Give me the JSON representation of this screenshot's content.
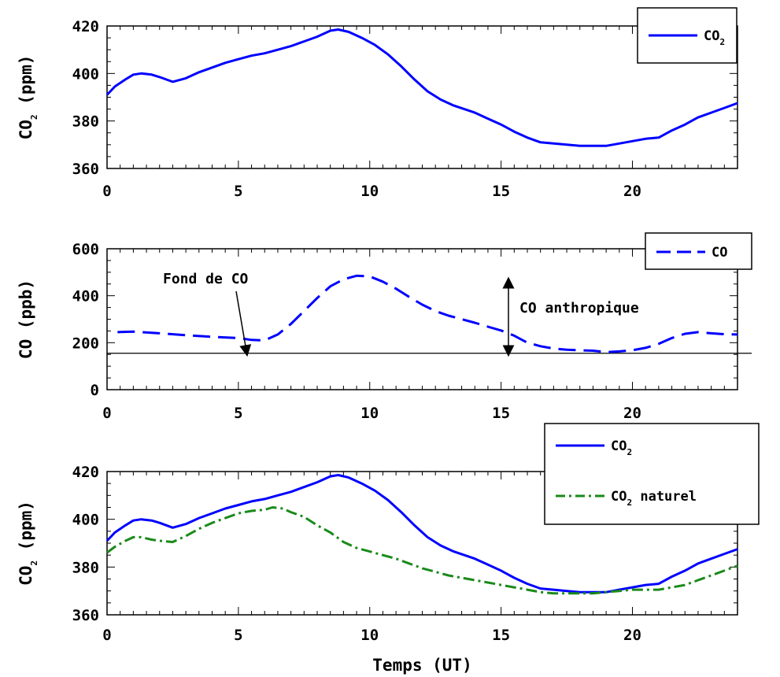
{
  "chart_data": [
    {
      "type": "line",
      "xlabel": "",
      "ylabel": "CO",
      "ylabel_sub": "2",
      "ylabel_unit": "(ppm)",
      "xlim": [
        0,
        24
      ],
      "ylim": [
        360,
        420
      ],
      "xticks": [
        "0",
        "5",
        "10",
        "15",
        "20"
      ],
      "yticks": [
        "360",
        "380",
        "400",
        "420"
      ],
      "legend_placement": "top-right",
      "series": [
        {
          "name": "CO",
          "name_sub": "2",
          "color": "#0000ff",
          "style": "solid",
          "x": [
            0,
            0.3,
            0.7,
            1.0,
            1.3,
            1.7,
            2.0,
            2.5,
            3.0,
            3.5,
            4.0,
            4.5,
            5.0,
            5.5,
            6.0,
            6.5,
            7.0,
            7.5,
            8.0,
            8.5,
            8.8,
            9.2,
            9.7,
            10.2,
            10.7,
            11.2,
            11.7,
            12.2,
            12.7,
            13.2,
            14.0,
            14.5,
            15.0,
            15.5,
            16.0,
            16.5,
            17.0,
            17.5,
            18.0,
            18.5,
            19.0,
            19.5,
            20.0,
            20.5,
            21.0,
            21.5,
            22.0,
            22.5,
            23.0,
            23.5,
            24.0
          ],
          "y": [
            391.0,
            394.5,
            397.5,
            399.5,
            400.0,
            399.5,
            398.5,
            396.5,
            398.0,
            400.5,
            402.5,
            404.5,
            406.0,
            407.5,
            408.5,
            410.0,
            411.5,
            413.5,
            415.5,
            418.0,
            418.5,
            417.5,
            415.0,
            412.0,
            408.0,
            403.0,
            397.5,
            392.5,
            389.0,
            386.5,
            383.5,
            381.0,
            378.5,
            375.5,
            373.0,
            371.0,
            370.5,
            370.0,
            369.5,
            369.5,
            369.5,
            370.5,
            371.5,
            372.5,
            373.0,
            376.0,
            378.5,
            381.5,
            383.5,
            385.5,
            387.5
          ]
        }
      ]
    },
    {
      "type": "line",
      "xlabel": "",
      "ylabel": "CO",
      "ylabel_unit": "(ppb)",
      "xlim": [
        0,
        24
      ],
      "ylim": [
        0,
        600
      ],
      "xticks": [
        "0",
        "5",
        "10",
        "15",
        "20"
      ],
      "yticks": [
        "0",
        "200",
        "400",
        "600"
      ],
      "legend_placement": "top-right",
      "baseline": 155,
      "annotations": [
        {
          "text": "Fond de CO"
        },
        {
          "text": "CO anthropique"
        }
      ],
      "series": [
        {
          "name": "CO",
          "color": "#0000ff",
          "style": "dashed",
          "x": [
            0.4,
            1.0,
            2.0,
            3.0,
            4.0,
            5.0,
            5.5,
            6.0,
            6.5,
            7.0,
            7.5,
            8.0,
            8.5,
            9.0,
            9.5,
            10.0,
            10.5,
            11.0,
            11.5,
            12.0,
            12.5,
            13.0,
            13.5,
            14.0,
            14.5,
            15.0,
            15.5,
            16.0,
            16.5,
            17.0,
            17.5,
            18.0,
            18.5,
            19.0,
            19.5,
            20.0,
            20.5,
            21.0,
            21.5,
            22.0,
            22.5,
            23.0,
            23.5,
            24.0
          ],
          "y": [
            245,
            247,
            240,
            232,
            225,
            220,
            212,
            210,
            235,
            280,
            335,
            390,
            440,
            470,
            485,
            482,
            460,
            430,
            395,
            362,
            335,
            315,
            300,
            285,
            268,
            252,
            230,
            200,
            185,
            175,
            170,
            168,
            166,
            160,
            163,
            168,
            178,
            195,
            220,
            238,
            245,
            240,
            236,
            235
          ]
        }
      ]
    },
    {
      "type": "line",
      "xlabel": "Temps (UT)",
      "ylabel": "CO",
      "ylabel_sub": "2",
      "ylabel_unit": "(ppm)",
      "xlim": [
        0,
        24
      ],
      "ylim": [
        360,
        420
      ],
      "xticks": [
        "0",
        "5",
        "10",
        "15",
        "20"
      ],
      "yticks": [
        "360",
        "380",
        "400",
        "420"
      ],
      "legend_placement": "top-right",
      "series": [
        {
          "name": "CO",
          "name_sub": "2",
          "color": "#0000ff",
          "style": "solid",
          "x": [
            0,
            0.3,
            0.7,
            1.0,
            1.3,
            1.7,
            2.0,
            2.5,
            3.0,
            3.5,
            4.0,
            4.5,
            5.0,
            5.5,
            6.0,
            6.5,
            7.0,
            7.5,
            8.0,
            8.5,
            8.8,
            9.2,
            9.7,
            10.2,
            10.7,
            11.2,
            11.7,
            12.2,
            12.7,
            13.2,
            14.0,
            14.5,
            15.0,
            15.5,
            16.0,
            16.5,
            17.0,
            17.5,
            18.0,
            18.5,
            19.0,
            19.5,
            20.0,
            20.5,
            21.0,
            21.5,
            22.0,
            22.5,
            23.0,
            23.5,
            24.0
          ],
          "y": [
            391.0,
            394.5,
            397.5,
            399.5,
            400.0,
            399.5,
            398.5,
            396.5,
            398.0,
            400.5,
            402.5,
            404.5,
            406.0,
            407.5,
            408.5,
            410.0,
            411.5,
            413.5,
            415.5,
            418.0,
            418.5,
            417.5,
            415.0,
            412.0,
            408.0,
            403.0,
            397.5,
            392.5,
            389.0,
            386.5,
            383.5,
            381.0,
            378.5,
            375.5,
            373.0,
            371.0,
            370.5,
            370.0,
            369.5,
            369.5,
            369.5,
            370.5,
            371.5,
            372.5,
            373.0,
            376.0,
            378.5,
            381.5,
            383.5,
            385.5,
            387.5
          ]
        },
        {
          "name": "CO",
          "name_sub": "2",
          "name_suffix": "naturel",
          "color": "#1a8a1a",
          "style": "dashdot",
          "x": [
            0,
            0.3,
            0.7,
            1.0,
            1.3,
            1.7,
            2.0,
            2.5,
            3.0,
            3.5,
            4.0,
            4.5,
            5.0,
            5.5,
            6.0,
            6.3,
            6.7,
            7.0,
            7.5,
            8.0,
            8.5,
            9.0,
            9.5,
            10.0,
            10.5,
            11.0,
            11.5,
            12.0,
            12.5,
            13.0,
            13.5,
            14.0,
            14.5,
            15.0,
            15.5,
            16.0,
            16.5,
            17.0,
            17.5,
            18.0,
            18.5,
            19.0,
            19.5,
            20.0,
            20.5,
            21.0,
            21.5,
            22.0,
            22.5,
            23.0,
            23.5,
            24.0
          ],
          "y": [
            386.0,
            388.5,
            391.0,
            392.5,
            392.5,
            391.5,
            391.0,
            390.5,
            393.0,
            396.0,
            398.5,
            400.5,
            402.5,
            403.5,
            404.0,
            405.0,
            404.5,
            403.0,
            401.0,
            397.5,
            394.5,
            390.5,
            388.0,
            386.5,
            385.0,
            383.5,
            381.5,
            379.5,
            378.0,
            376.5,
            375.5,
            374.5,
            373.5,
            372.5,
            371.5,
            370.5,
            369.5,
            369.0,
            369.0,
            369.0,
            369.0,
            369.5,
            370.0,
            370.5,
            370.5,
            370.5,
            371.5,
            372.5,
            374.5,
            376.5,
            378.5,
            380.5
          ]
        }
      ]
    }
  ]
}
